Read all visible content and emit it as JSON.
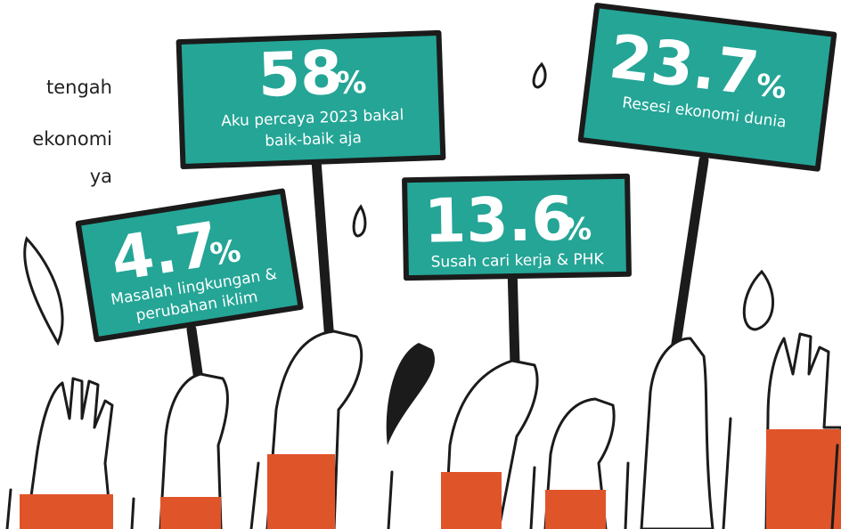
{
  "side_text": [
    "tengah",
    "ekonomi",
    "ya"
  ],
  "signs": [
    {
      "value": "58",
      "unit": "%",
      "caption_lines": [
        "Aku percaya 2023 bakal",
        "baik-baik aja"
      ]
    },
    {
      "value": "23.7",
      "unit": "%",
      "caption_lines": [
        "Resesi ekonomi dunia"
      ]
    },
    {
      "value": "13.6",
      "unit": "%",
      "caption_lines": [
        "Susah cari kerja & PHK"
      ]
    },
    {
      "value": "4.7",
      "unit": "%",
      "caption_lines": [
        "Masalah lingkungan &",
        "perubahan iklim"
      ]
    }
  ]
}
